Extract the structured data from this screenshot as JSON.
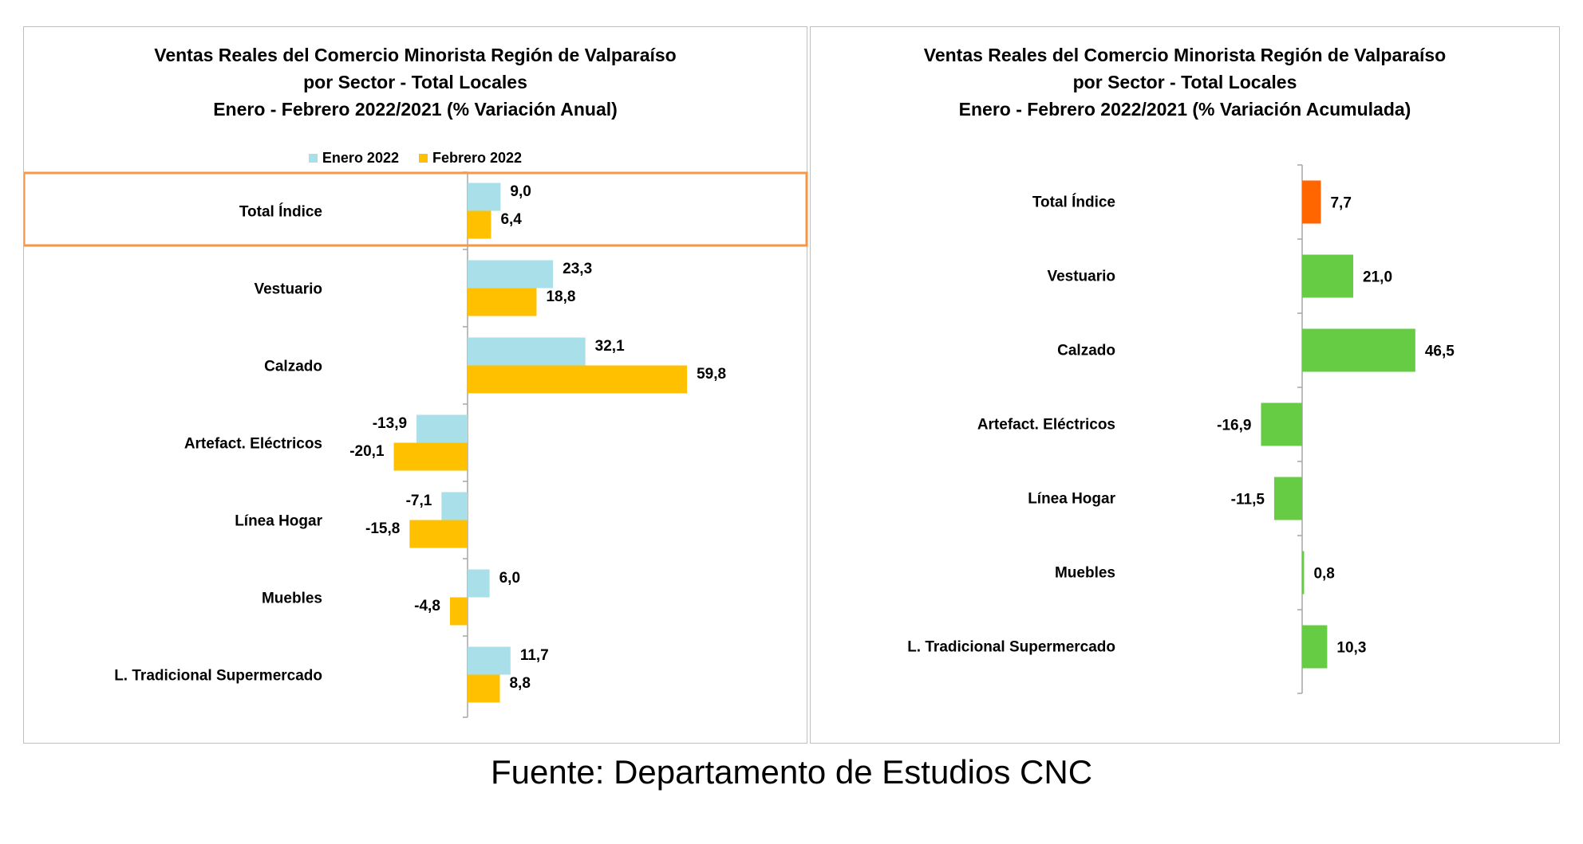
{
  "chart_data": [
    {
      "type": "bar",
      "orientation": "horizontal",
      "title": [
        "Ventas Reales del Comercio Minorista Región de Valparaíso",
        "por Sector - Total Locales",
        "Enero - Febrero 2022/2021 (% Variación Anual)"
      ],
      "categories": [
        "Total Índice",
        "Vestuario",
        "Calzado",
        "Artefact. Eléctricos",
        "Línea Hogar",
        "Muebles",
        "L. Tradicional Supermercado"
      ],
      "series": [
        {
          "name": "Enero 2022",
          "color": "#a9dfe8",
          "values": [
            9.0,
            23.3,
            32.1,
            -13.9,
            -7.1,
            6.0,
            11.7
          ],
          "labels": [
            "9,0",
            "23,3",
            "32,1",
            "-13,9",
            "-7,1",
            "6,0",
            "11,7"
          ]
        },
        {
          "name": "Febrero 2022",
          "color": "#ffc000",
          "values": [
            6.4,
            18.8,
            59.8,
            -20.1,
            -15.8,
            -4.8,
            8.8
          ],
          "labels": [
            "6,4",
            "18,8",
            "59,8",
            "-20,1",
            "-15,8",
            "-4,8",
            "8,8"
          ]
        }
      ],
      "legend_position": "top",
      "highlight_category": "Total Índice",
      "highlight_color": "#f79646",
      "grid": false
    },
    {
      "type": "bar",
      "orientation": "horizontal",
      "title": [
        "Ventas Reales del Comercio Minorista Región de Valparaíso",
        "por Sector  - Total Locales",
        "Enero - Febrero 2022/2021 (% Variación Acumulada)"
      ],
      "categories": [
        "Total Índice",
        "Vestuario",
        "Calzado",
        "Artefact. Eléctricos",
        "Línea Hogar",
        "Muebles",
        "L. Tradicional Supermercado"
      ],
      "values": [
        7.7,
        21.0,
        46.5,
        -16.9,
        -11.5,
        0.8,
        10.3
      ],
      "labels": [
        "7,7",
        "21,0",
        "46,5",
        "-16,9",
        "-11,5",
        "0,8",
        "10,3"
      ],
      "colors": [
        "#ff6600",
        "#66cc44",
        "#66cc44",
        "#66cc44",
        "#66cc44",
        "#66cc44",
        "#66cc44"
      ],
      "grid": false
    }
  ],
  "source": "Fuente: Departamento de Estudios CNC"
}
